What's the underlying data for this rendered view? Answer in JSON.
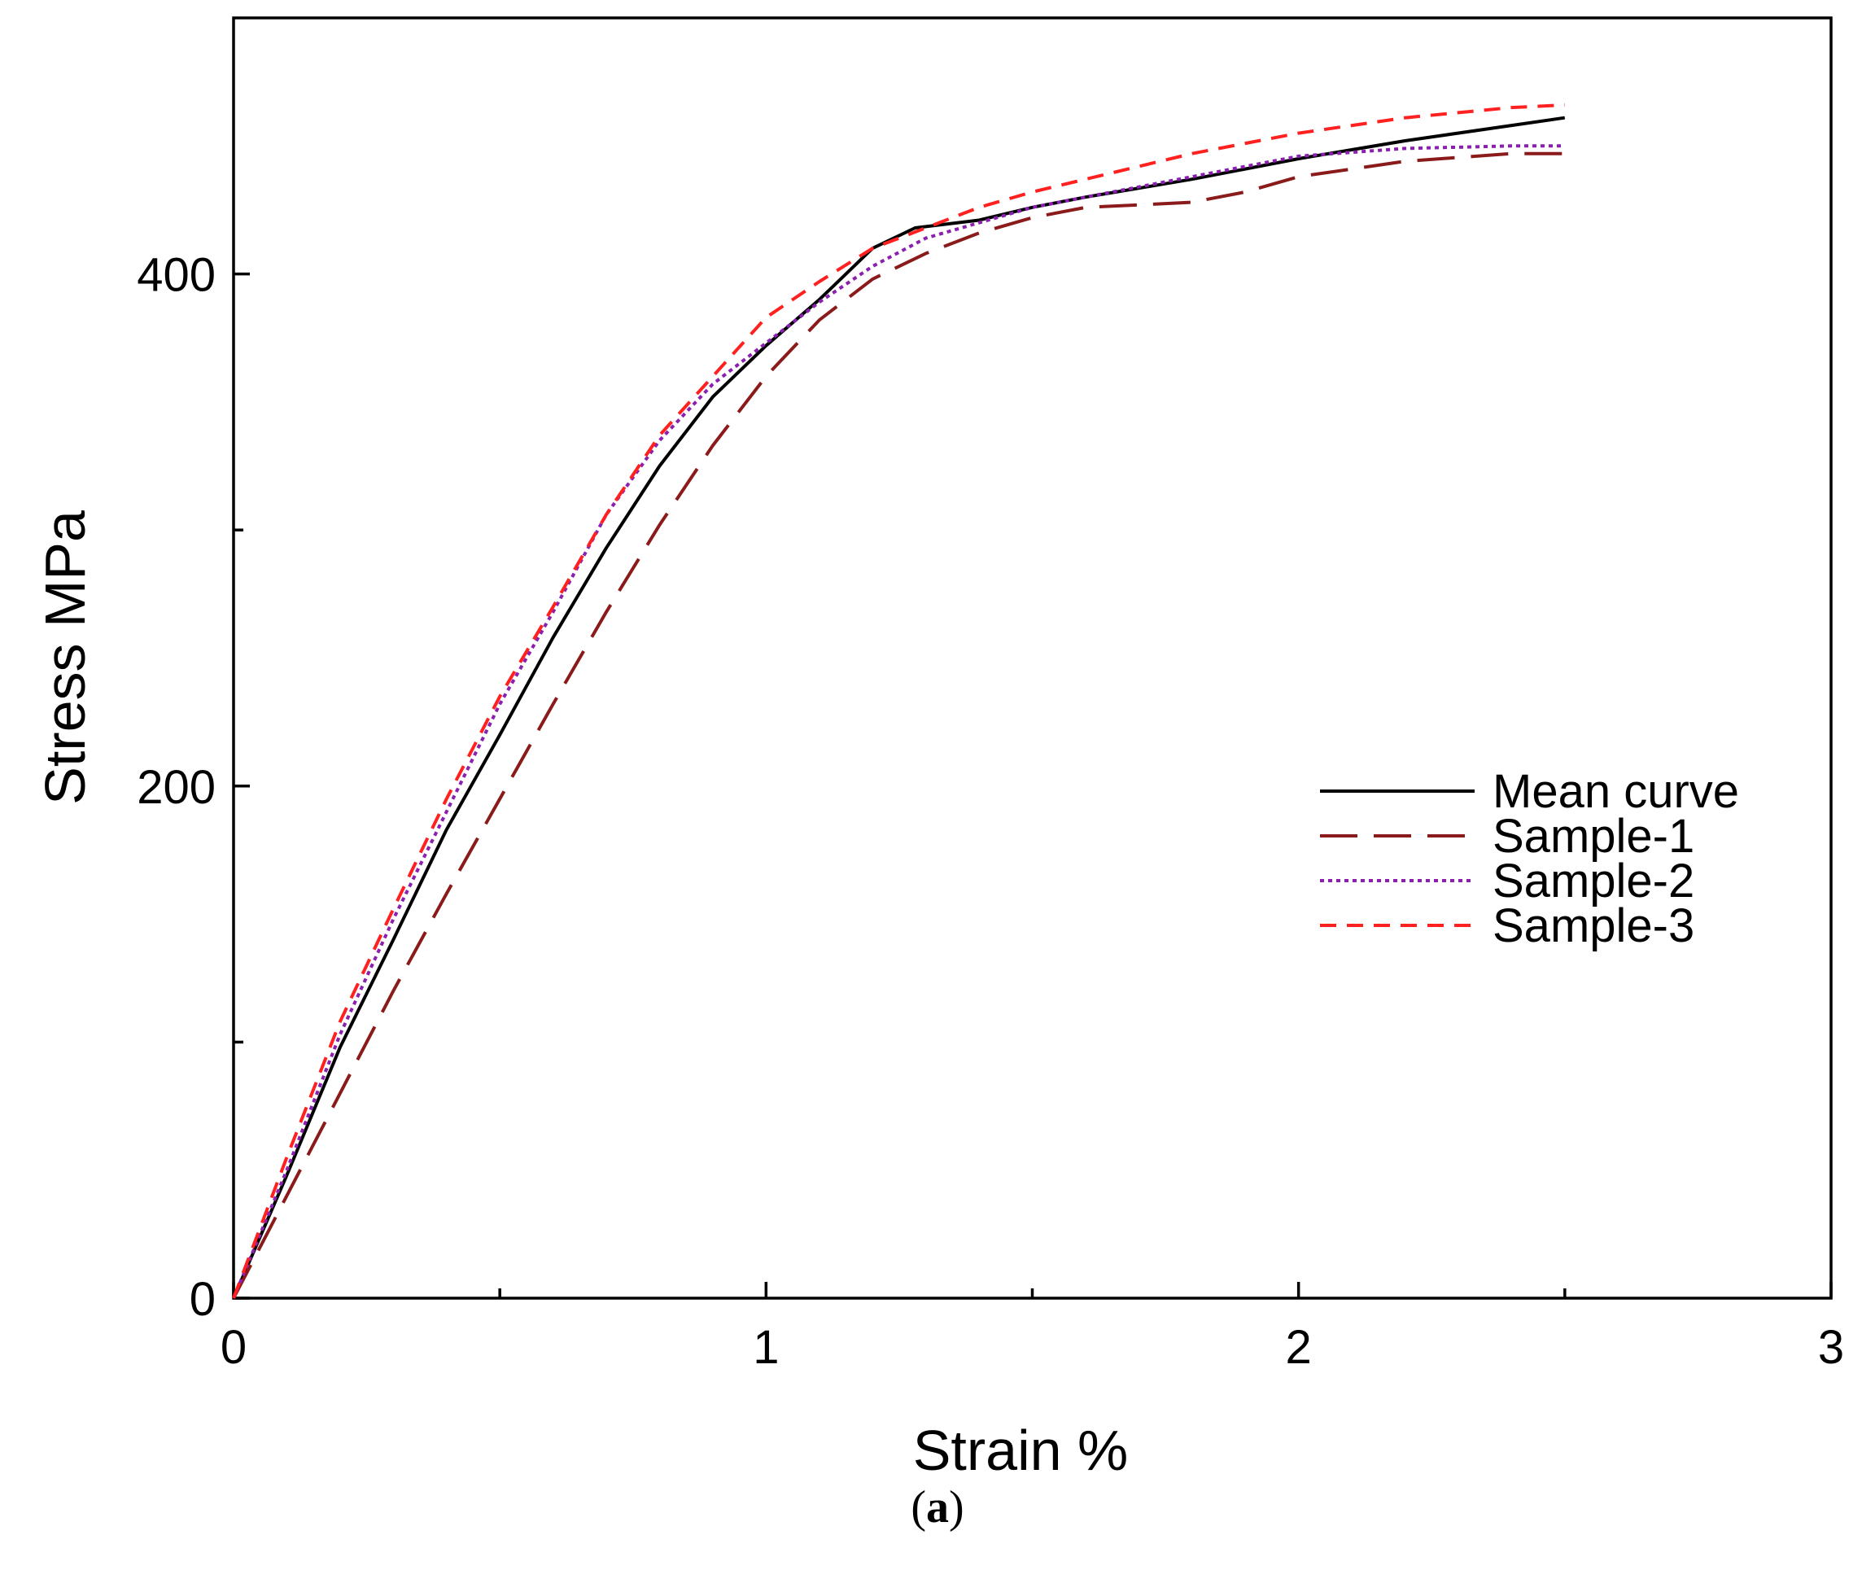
{
  "caption": {
    "open": "(",
    "letter": "a",
    "close": ")"
  },
  "chart_data": {
    "type": "line",
    "title": "",
    "xlabel": "Strain %",
    "ylabel": "Stress MPa",
    "xlim": [
      0,
      3
    ],
    "ylim": [
      0,
      500
    ],
    "xticks": [
      {
        "value": 0,
        "label": "0"
      },
      {
        "value": 1,
        "label": "1"
      },
      {
        "value": 2,
        "label": "2"
      },
      {
        "value": 3,
        "label": "3"
      }
    ],
    "x_minor_ticks": [
      0.5,
      1.5,
      2.5
    ],
    "yticks": [
      {
        "value": 0,
        "label": "0"
      },
      {
        "value": 200,
        "label": "200"
      },
      {
        "value": 400,
        "label": "400"
      }
    ],
    "y_minor_ticks": [
      100,
      300
    ],
    "grid": false,
    "legend_position": "right",
    "series": [
      {
        "name": "Mean curve",
        "color": "#000000",
        "style": "solid",
        "x": [
          0,
          0.1,
          0.2,
          0.3,
          0.4,
          0.5,
          0.6,
          0.7,
          0.8,
          0.9,
          1.0,
          1.1,
          1.2,
          1.28,
          1.4,
          1.5,
          1.6,
          1.8,
          2.0,
          2.2,
          2.4,
          2.5
        ],
        "y": [
          0,
          48,
          98,
          140,
          183,
          220,
          258,
          293,
          325,
          352,
          372,
          390,
          410,
          418,
          421,
          426,
          430,
          437,
          445,
          452,
          458,
          461
        ]
      },
      {
        "name": "Sample-1",
        "color": "#8B1A1A",
        "style": "long-dash",
        "x": [
          0,
          0.1,
          0.2,
          0.3,
          0.4,
          0.5,
          0.6,
          0.7,
          0.8,
          0.9,
          1.0,
          1.1,
          1.2,
          1.3,
          1.4,
          1.5,
          1.6,
          1.7,
          1.8,
          1.9,
          2.0,
          2.2,
          2.4,
          2.5
        ],
        "y": [
          0,
          40,
          80,
          120,
          158,
          195,
          232,
          268,
          302,
          333,
          360,
          382,
          398,
          408,
          416,
          422,
          426,
          427,
          428,
          432,
          438,
          444,
          447,
          447
        ]
      },
      {
        "name": "Sample-2",
        "color": "#8B20B0",
        "style": "dotted",
        "x": [
          0,
          0.1,
          0.2,
          0.3,
          0.4,
          0.5,
          0.6,
          0.7,
          0.8,
          0.9,
          1.0,
          1.1,
          1.2,
          1.3,
          1.4,
          1.5,
          1.6,
          1.8,
          2.0,
          2.2,
          2.4,
          2.5
        ],
        "y": [
          0,
          50,
          103,
          148,
          190,
          232,
          268,
          306,
          335,
          357,
          373,
          389,
          403,
          414,
          420,
          426,
          430,
          438,
          446,
          449,
          450,
          450
        ]
      },
      {
        "name": "Sample-3",
        "color": "#FF2020",
        "style": "short-dash",
        "x": [
          0,
          0.1,
          0.2,
          0.3,
          0.4,
          0.5,
          0.6,
          0.7,
          0.8,
          0.9,
          1.0,
          1.1,
          1.2,
          1.3,
          1.4,
          1.5,
          1.6,
          1.8,
          2.0,
          2.2,
          2.4,
          2.5
        ],
        "y": [
          0,
          55,
          108,
          152,
          195,
          235,
          270,
          306,
          337,
          360,
          383,
          397,
          410,
          418,
          426,
          432,
          437,
          447,
          455,
          461,
          465,
          466
        ]
      }
    ]
  }
}
